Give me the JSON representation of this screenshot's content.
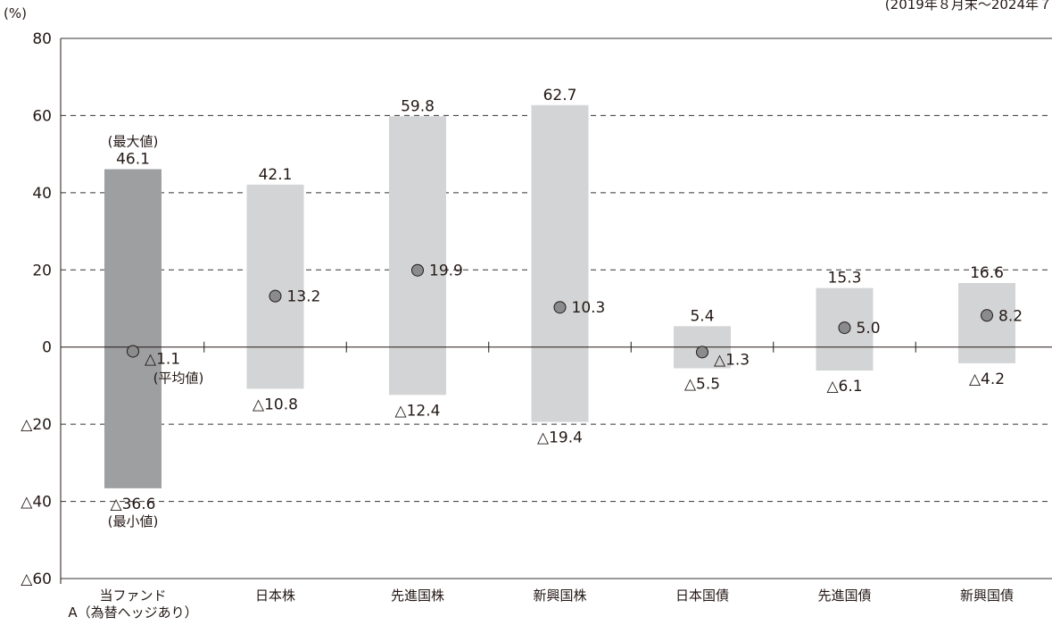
{
  "period_note": "(2019年８月末～2024年７",
  "chart_data": {
    "type": "bar",
    "ylabel": "(%)",
    "ylim": [
      -60,
      80
    ],
    "yticks": [
      80,
      60,
      40,
      20,
      0,
      -20,
      -40,
      -60
    ],
    "ytick_labels": [
      "80",
      "60",
      "40",
      "20",
      "0",
      "△20",
      "△40",
      "△60"
    ],
    "grid": "dashed horizontal",
    "categories": [
      "当ファンド\nA（為替ヘッジあり）",
      "日本株",
      "先進国株",
      "新興国株",
      "日本国債",
      "先進国債",
      "新興国債"
    ],
    "series": [
      {
        "max": [
          46.1,
          42.1,
          59.8,
          62.7,
          5.4,
          15.3,
          16.6
        ]
      },
      {
        "min": [
          -36.6,
          -10.8,
          -12.4,
          -19.4,
          -5.5,
          -6.1,
          -4.2
        ]
      },
      {
        "avg": [
          -1.1,
          13.2,
          19.9,
          10.3,
          -1.3,
          5.0,
          8.2
        ]
      }
    ],
    "max_labels": [
      "46.1",
      "42.1",
      "59.8",
      "62.7",
      "5.4",
      "15.3",
      "16.6"
    ],
    "min_labels": [
      "△36.6",
      "△10.8",
      "△12.4",
      "△19.4",
      "△5.5",
      "△6.1",
      "△4.2"
    ],
    "avg_labels": [
      "△1.1",
      "13.2",
      "19.9",
      "10.3",
      "△1.3",
      "5.0",
      "8.2"
    ],
    "annotations": {
      "max": "(最大値)",
      "avg": "(平均値)",
      "min": "(最小値)"
    },
    "colors": {
      "fund_bar": "#9e9fa1",
      "asset_bar": "#d3d4d5",
      "avg_marker": "#8a8b8d",
      "text": "#231815"
    }
  }
}
